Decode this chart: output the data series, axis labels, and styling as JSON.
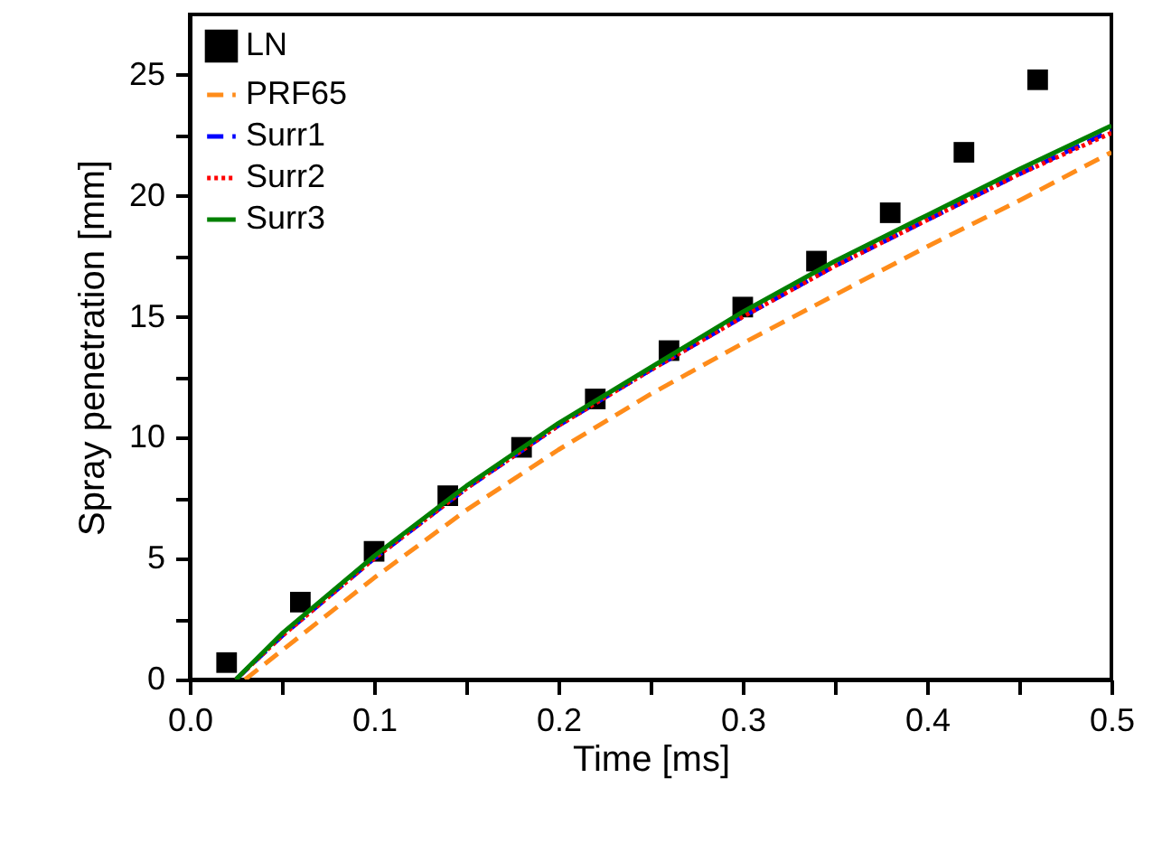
{
  "chart_data": {
    "type": "line",
    "xlabel": "Time [ms]",
    "ylabel": "Spray penetration [mm]",
    "xlim": [
      0,
      0.5
    ],
    "ylim": [
      0,
      27.5
    ],
    "xticks": [
      {
        "value": 0,
        "label": "0.0"
      },
      {
        "value": 0.05,
        "label": null
      },
      0.1,
      {
        "value": 0.15,
        "label": null
      },
      0.2,
      {
        "value": 0.25,
        "label": null
      },
      0.3,
      {
        "value": 0.35,
        "label": null
      },
      0.4,
      {
        "value": 0.45,
        "label": null
      },
      0.5
    ],
    "yticks": [
      0,
      {
        "value": 2.5,
        "label": null
      },
      5,
      {
        "value": 7.5,
        "label": null
      },
      10,
      {
        "value": 12.5,
        "label": null
      },
      15,
      {
        "value": 17.5,
        "label": null
      },
      20,
      {
        "value": 22.5,
        "label": null
      },
      25
    ],
    "grid": false,
    "legend": "top left",
    "series": [
      {
        "name": "LN",
        "type": "scatter",
        "marker": "square",
        "color": "#000000",
        "x": [
          0.02,
          0.06,
          0.1,
          0.14,
          0.18,
          0.22,
          0.26,
          0.3,
          0.34,
          0.38,
          0.42,
          0.46
        ],
        "values": [
          0.7,
          3.2,
          5.3,
          7.6,
          9.6,
          11.6,
          13.6,
          15.4,
          17.3,
          19.3,
          21.8,
          24.8
        ]
      },
      {
        "name": "PRF65",
        "type": "line",
        "line_style": "dashed",
        "color": "#ff8c1a",
        "x": [
          0.03,
          0.05,
          0.1,
          0.15,
          0.2,
          0.25,
          0.3,
          0.35,
          0.4,
          0.45,
          0.5
        ],
        "values": [
          0,
          1.2,
          4.2,
          7.0,
          9.5,
          11.8,
          13.9,
          15.9,
          17.9,
          19.8,
          21.8
        ]
      },
      {
        "name": "Surr1",
        "type": "line",
        "line_style": "dashed",
        "color": "#0000ff",
        "x": [
          0.025,
          0.05,
          0.1,
          0.15,
          0.2,
          0.25,
          0.3,
          0.35,
          0.4,
          0.45,
          0.5
        ],
        "values": [
          0,
          1.8,
          5.0,
          7.9,
          10.5,
          12.8,
          15.0,
          17.1,
          19.0,
          20.9,
          22.7
        ]
      },
      {
        "name": "Surr2",
        "type": "line",
        "line_style": "dotted",
        "color": "#ff0000",
        "x": [
          0.025,
          0.05,
          0.1,
          0.15,
          0.2,
          0.25,
          0.3,
          0.35,
          0.4,
          0.45,
          0.5
        ],
        "values": [
          0,
          1.8,
          5.0,
          7.9,
          10.5,
          12.8,
          15.0,
          17.1,
          19.0,
          20.9,
          22.6
        ]
      },
      {
        "name": "Surr3",
        "type": "line",
        "line_style": "solid",
        "color": "#008000",
        "x": [
          0.025,
          0.05,
          0.1,
          0.15,
          0.2,
          0.25,
          0.3,
          0.35,
          0.4,
          0.45,
          0.5
        ],
        "values": [
          0,
          1.9,
          5.1,
          8.0,
          10.6,
          12.9,
          15.2,
          17.3,
          19.2,
          21.1,
          22.9
        ]
      }
    ]
  }
}
